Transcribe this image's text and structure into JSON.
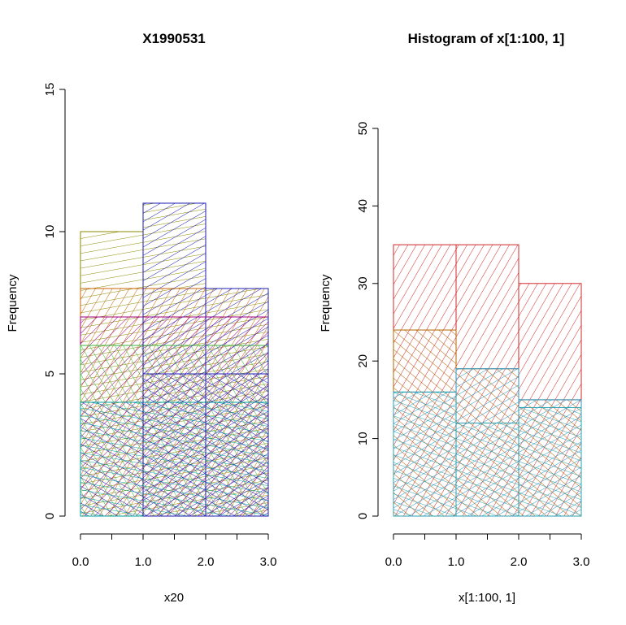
{
  "chart_data": [
    {
      "type": "bar",
      "title": "X1990531",
      "xlabel": "x20",
      "ylabel": "Frequency",
      "bins": [
        [
          0,
          1
        ],
        [
          1,
          2
        ],
        [
          2,
          3
        ]
      ],
      "xlim": [
        0,
        3
      ],
      "ylim": [
        0,
        15
      ],
      "xticks": [
        "0.0",
        "1.0",
        "2.0",
        "3.0"
      ],
      "xticks_minor": [
        0.5,
        1.5,
        2.5
      ],
      "yticks": [
        "0",
        "5",
        "10",
        "15"
      ],
      "grid": false,
      "layers": [
        {
          "values": [
            10,
            11,
            8
          ],
          "color": "#8B8B00",
          "angle": 80
        },
        {
          "values": [
            8,
            8,
            8
          ],
          "color": "#C86400",
          "angle": 30
        },
        {
          "values": [
            7,
            7,
            7
          ],
          "color": "#A0007A",
          "angle": 45
        },
        {
          "values": [
            6,
            6,
            6
          ],
          "color": "#3CB43C",
          "angle": 150
        },
        {
          "values": [
            4,
            5,
            5
          ],
          "color": "#1E1EB4",
          "angle": 120
        },
        {
          "values": [
            4,
            4,
            4
          ],
          "color": "#00A0A0",
          "angle": 100
        },
        {
          "values": [
            0,
            11,
            8
          ],
          "color": "#1E1EB4",
          "angle": 60
        }
      ]
    },
    {
      "type": "bar",
      "title": "Histogram of x[1:100, 1]",
      "xlabel": "x[1:100, 1]",
      "ylabel": "Frequency",
      "bins": [
        [
          0,
          1
        ],
        [
          1,
          2
        ],
        [
          2,
          3
        ]
      ],
      "xlim": [
        0,
        3
      ],
      "ylim": [
        0,
        50
      ],
      "xticks": [
        "0.0",
        "1.0",
        "2.0",
        "3.0"
      ],
      "xticks_minor": [
        0.5,
        1.5,
        2.5
      ],
      "yticks": [
        "0",
        "10",
        "20",
        "30",
        "40",
        "50"
      ],
      "grid": false,
      "layers": [
        {
          "values": [
            35,
            35,
            30
          ],
          "color": "#D22828",
          "angle": 30
        },
        {
          "values": [
            24,
            19,
            15
          ],
          "color": "#B46400",
          "angle": 130
        },
        {
          "values": [
            16,
            19,
            15
          ],
          "color": "#2896C8",
          "angle": 60
        },
        {
          "values": [
            16,
            12,
            14
          ],
          "color": "#2AA0B0",
          "angle": 110
        }
      ]
    }
  ]
}
